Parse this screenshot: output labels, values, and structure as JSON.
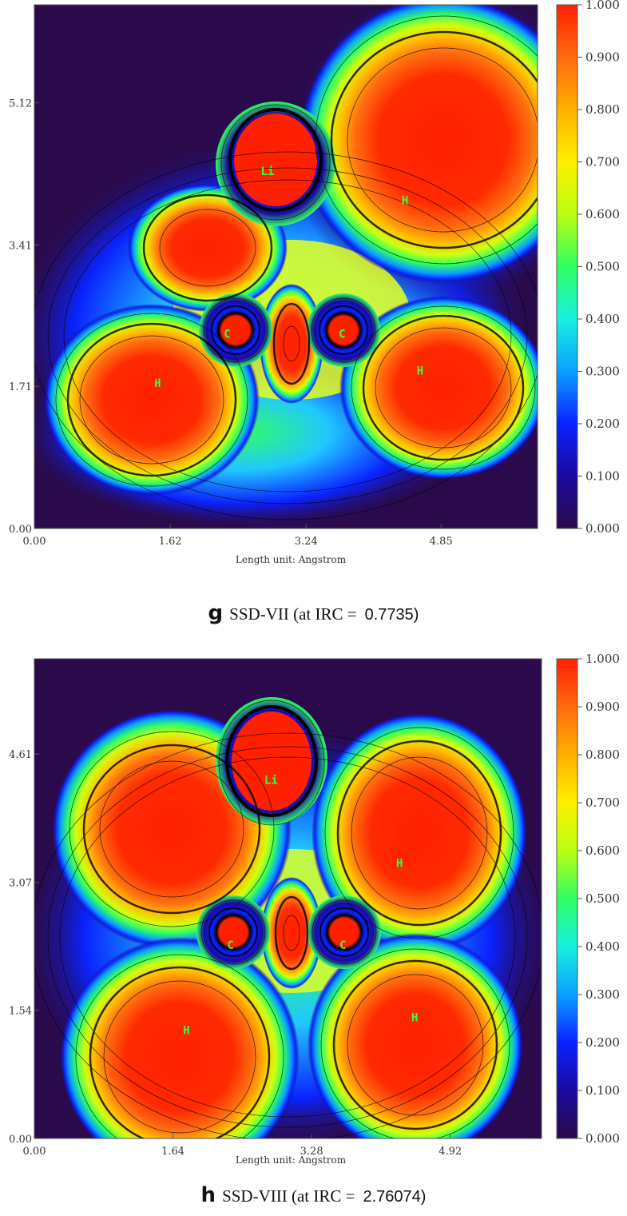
{
  "colors": {
    "scale": [
      "#2a0a4a",
      "#1a0aa0",
      "#0a22ff",
      "#0aa0ff",
      "#18f0e0",
      "#30ff60",
      "#b8ff10",
      "#fff000",
      "#ffb000",
      "#ff6a10",
      "#ff2000"
    ]
  },
  "chart_data": [
    {
      "type": "heatmap",
      "panel_label": "g",
      "caption_name": "SSD-VII (at IRC =",
      "caption_value": "0.7735)",
      "xlabel": "Length unit: Angstrom",
      "x_ticks": [
        "0.00",
        "1.62",
        "3.24",
        "4.85"
      ],
      "y_ticks": [
        "0.00",
        "1.71",
        "3.41",
        "5.12"
      ],
      "xlim": [
        0,
        6.0
      ],
      "ylim": [
        0,
        6.3
      ],
      "colorbar_ticks": [
        "1.000",
        "0.900",
        "0.800",
        "0.700",
        "0.600",
        "0.500",
        "0.400",
        "0.300",
        "0.200",
        "0.100",
        "0.000"
      ],
      "colorbar_range": [
        0,
        1
      ],
      "atoms": [
        {
          "label": "Li",
          "x": 2.78,
          "y": 4.3
        },
        {
          "label": "H",
          "x": 4.42,
          "y": 3.95
        },
        {
          "label": "C",
          "x": 2.3,
          "y": 2.34
        },
        {
          "label": "C",
          "x": 3.67,
          "y": 2.34
        },
        {
          "label": "H",
          "x": 1.47,
          "y": 1.75
        },
        {
          "label": "H",
          "x": 4.6,
          "y": 1.9
        }
      ]
    },
    {
      "type": "heatmap",
      "panel_label": "h",
      "caption_name": "SSD-VIII (at IRC =",
      "caption_value": "2.76074)",
      "xlabel": "Length unit: Angstrom",
      "x_ticks": [
        "0.00",
        "1.64",
        "3.28",
        "4.92"
      ],
      "y_ticks": [
        "0.00",
        "1.54",
        "3.07",
        "4.61"
      ],
      "xlim": [
        0,
        6.0
      ],
      "ylim": [
        0,
        5.75
      ],
      "colorbar_ticks": [
        "1.000",
        "0.900",
        "0.800",
        "0.700",
        "0.600",
        "0.500",
        "0.400",
        "0.300",
        "0.200",
        "0.100",
        "0.000"
      ],
      "colorbar_range": [
        0,
        1
      ],
      "atoms": [
        {
          "label": "Li",
          "x": 2.8,
          "y": 4.3
        },
        {
          "label": "H",
          "x": 4.32,
          "y": 3.3
        },
        {
          "label": "C",
          "x": 2.32,
          "y": 2.32
        },
        {
          "label": "C",
          "x": 3.65,
          "y": 2.32
        },
        {
          "label": "H",
          "x": 1.8,
          "y": 1.3
        },
        {
          "label": "H",
          "x": 4.5,
          "y": 1.45
        }
      ]
    }
  ]
}
